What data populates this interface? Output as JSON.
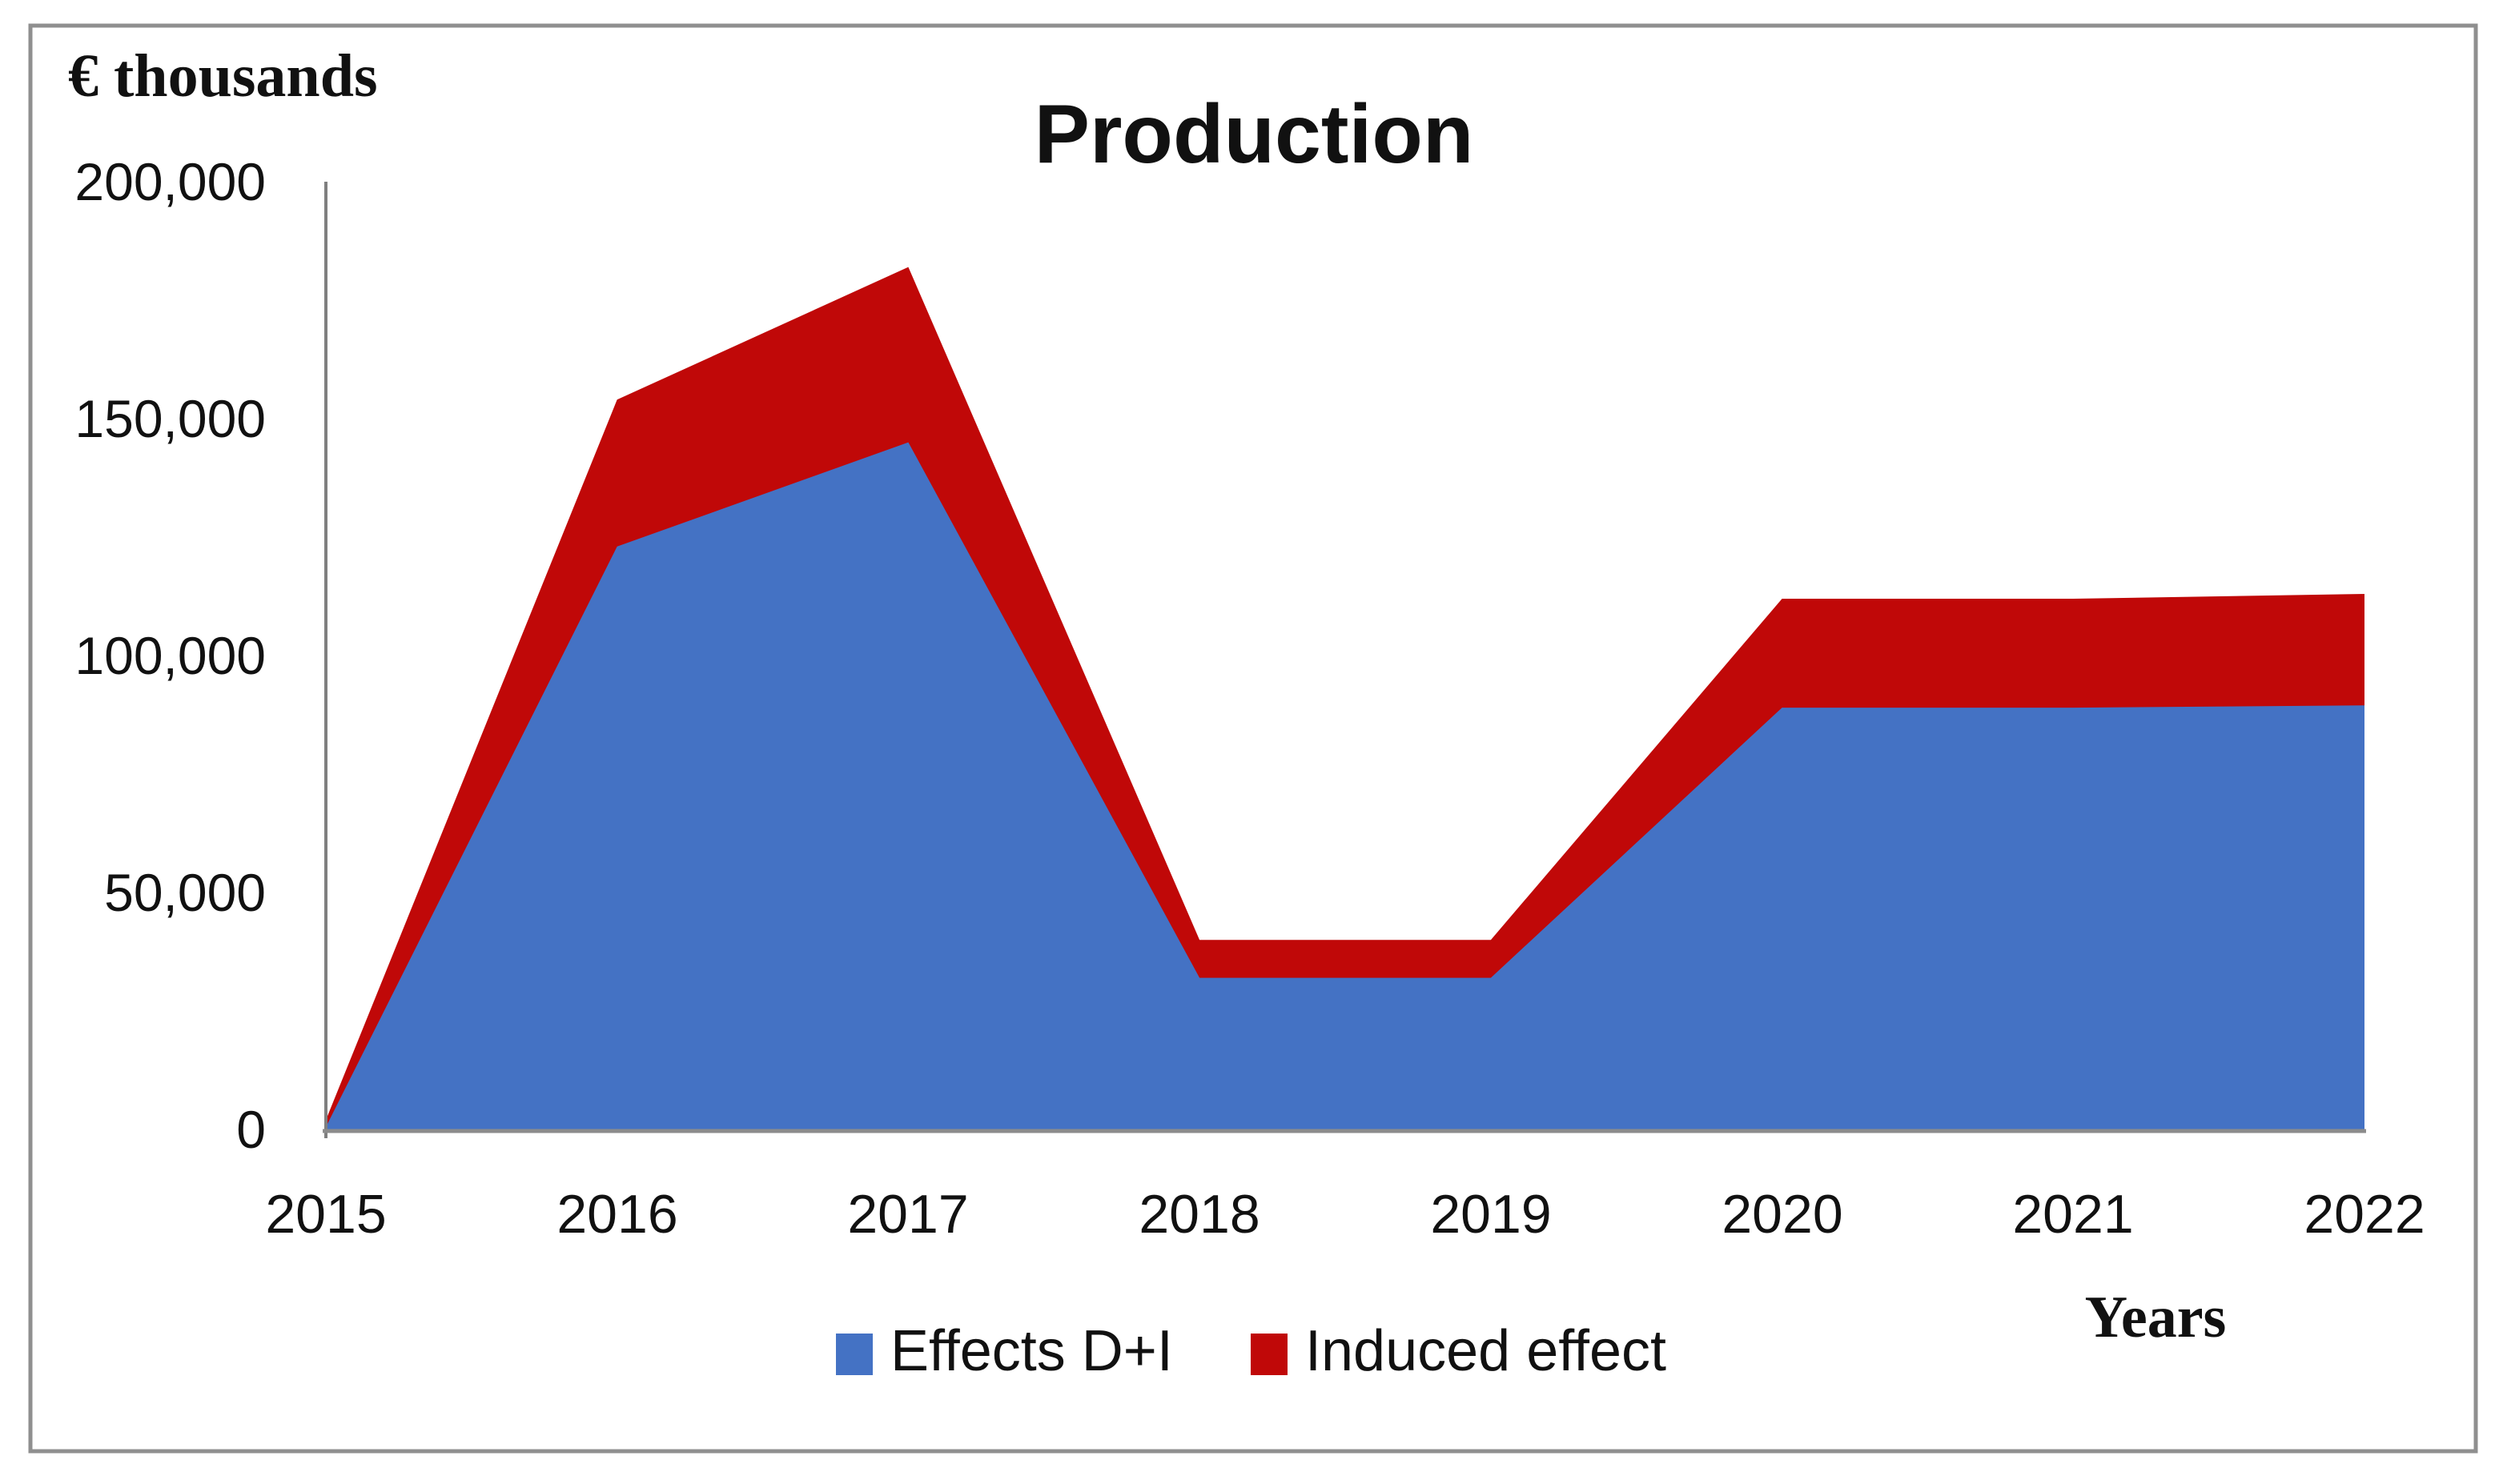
{
  "chart_data": {
    "type": "area",
    "stacked": true,
    "title": "Production",
    "y_axis_title": "€ thousands",
    "x_axis_title": "Years",
    "categories": [
      "2015",
      "2016",
      "2017",
      "2018",
      "2019",
      "2020",
      "2021",
      "2022"
    ],
    "series": [
      {
        "name": "Effects D+I",
        "color": "#4472C4",
        "values": [
          500,
          123000,
          145000,
          32000,
          32000,
          89000,
          89000,
          89500
        ]
      },
      {
        "name": "Induced effect",
        "color": "#C00808",
        "values": [
          1500,
          31000,
          37000,
          8000,
          8000,
          23000,
          23000,
          23500
        ]
      }
    ],
    "stacked_totals": [
      2000,
      154000,
      182000,
      40000,
      40000,
      112000,
      112000,
      113000
    ],
    "y_ticks": [
      {
        "value": 0,
        "label": "0"
      },
      {
        "value": 50000,
        "label": "50,000"
      },
      {
        "value": 100000,
        "label": "100,000"
      },
      {
        "value": 150000,
        "label": "150,000"
      },
      {
        "value": 200000,
        "label": "200,000"
      }
    ],
    "ylim": [
      0,
      200000
    ],
    "grid": false,
    "legend_position": "bottom",
    "colors": {
      "axis": "#7F7F7F",
      "baseline": "#8C8C8C",
      "frame": "#8F8F8F",
      "background": "#FFFFFF",
      "text": "#111111"
    }
  }
}
